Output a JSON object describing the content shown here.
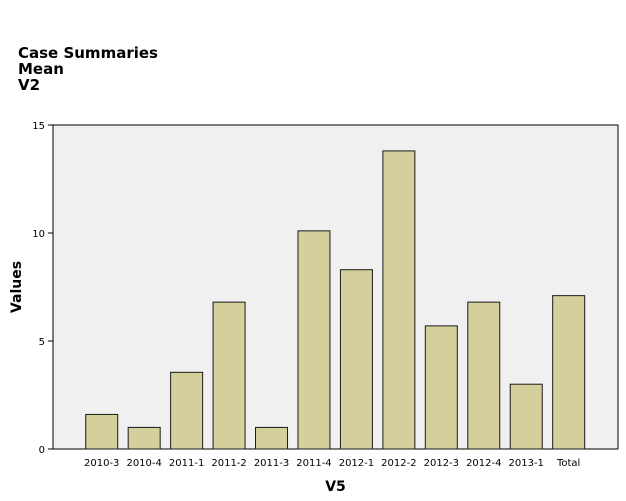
{
  "header": {
    "title": "Case Summaries",
    "statistic": "Mean",
    "variable": "V2"
  },
  "colors": {
    "bar_fill": "#d5d09b",
    "bar_stroke": "#1a1a1a",
    "plot_background": "#f0f0f0",
    "plot_border": "#000000"
  },
  "chart_data": {
    "type": "bar",
    "title": "Case Summaries Mean V2",
    "xlabel": "V5",
    "ylabel": "Values",
    "ylim": [
      0,
      15
    ],
    "yticks": [
      0,
      5,
      10,
      15
    ],
    "grid": false,
    "categories": [
      "2010-3",
      "2010-4",
      "2011-1",
      "2011-2",
      "2011-3",
      "2011-4",
      "2012-1",
      "2012-2",
      "2012-3",
      "2012-4",
      "2013-1",
      "Total"
    ],
    "values": [
      1.6,
      1.0,
      3.55,
      6.8,
      1.0,
      10.1,
      8.3,
      13.8,
      5.7,
      6.8,
      3.0,
      7.1
    ]
  }
}
